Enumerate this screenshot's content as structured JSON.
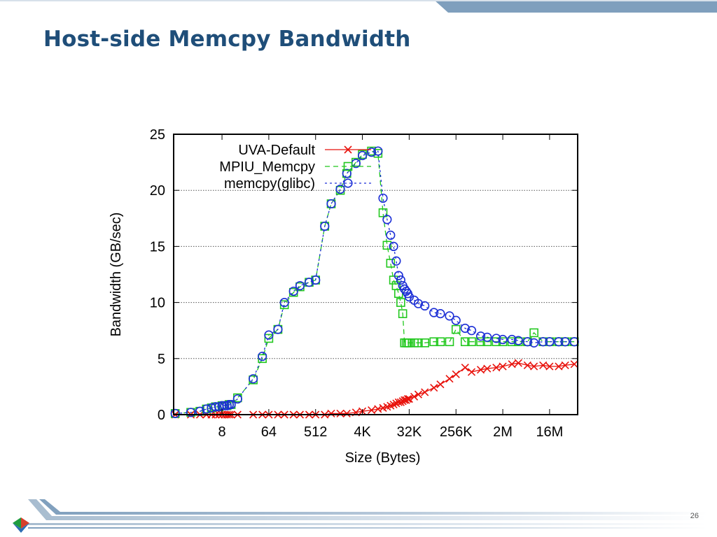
{
  "slide": {
    "title": "Host-side Memcpy Bandwidth",
    "page_number": "26",
    "colors": {
      "title": "#1f4e79",
      "band": "#7f9fbd",
      "footer_stripe": "#8aa8c4"
    }
  },
  "chart_data": {
    "type": "line",
    "title": "",
    "xlabel": "Size (Bytes)",
    "ylabel": "Bandwidth (GB/sec)",
    "x_scale": "log2",
    "x_tick_exponents": [
      3,
      6,
      9,
      12,
      15,
      18,
      21,
      24
    ],
    "x_tick_labels": [
      "8",
      "64",
      "512",
      "4K",
      "32K",
      "256K",
      "2M",
      "16M"
    ],
    "ylim": [
      0,
      25
    ],
    "y_ticks": [
      0,
      5,
      10,
      15,
      20,
      25
    ],
    "grid": "horizontal dotted",
    "legend_position": "top-right",
    "x": [
      1,
      2,
      3,
      4,
      5,
      6,
      7,
      8,
      9,
      10,
      11,
      12,
      16,
      32,
      48,
      64,
      96,
      128,
      192,
      256,
      384,
      512,
      768,
      1024,
      1536,
      2048,
      3072,
      4096,
      6144,
      8192,
      10240,
      12288,
      14336,
      16384,
      18432,
      20480,
      22528,
      24576,
      26624,
      28672,
      30720,
      32768,
      40960,
      49152,
      65536,
      98304,
      131072,
      196608,
      262144,
      393216,
      524288,
      786432,
      1048576,
      1572864,
      2097152,
      3145728,
      4194304,
      6291456,
      8388608,
      12582912,
      16777216,
      25165824,
      33554432,
      50331648
    ],
    "series": [
      {
        "name": "UVA-Default",
        "color": "#e8120c",
        "marker": "x",
        "dash": "solid",
        "values": [
          0.0,
          0.0,
          0.0,
          0.0,
          0.0,
          0.0,
          0.0,
          0.0,
          0.0,
          0.0,
          0.0,
          0.0,
          0.0,
          0.0,
          0.0,
          0.0,
          0.0,
          0.0,
          0.0,
          0.0,
          0.0,
          0.0,
          0.0,
          0.1,
          0.1,
          0.1,
          0.2,
          0.3,
          0.4,
          0.5,
          0.6,
          0.7,
          0.8,
          0.9,
          1.0,
          1.1,
          1.1,
          1.2,
          1.3,
          1.3,
          1.4,
          1.4,
          1.6,
          1.8,
          2.0,
          2.4,
          2.7,
          3.2,
          3.6,
          4.2,
          3.8,
          4.0,
          4.1,
          4.2,
          4.3,
          4.5,
          4.6,
          4.4,
          4.3,
          4.4,
          4.3,
          4.3,
          4.4,
          4.5
        ]
      },
      {
        "name": "MPIU_Memcpy",
        "color": "#22c81e",
        "marker": "square",
        "dash": "dashed",
        "values": [
          0.1,
          0.2,
          0.3,
          0.5,
          0.6,
          0.7,
          0.7,
          0.8,
          0.8,
          0.8,
          0.9,
          0.9,
          1.5,
          3.1,
          5.0,
          6.8,
          7.6,
          9.8,
          10.9,
          11.4,
          11.8,
          12.0,
          16.8,
          18.8,
          20.0,
          21.5,
          22.5,
          23.2,
          23.5,
          23.3,
          18.0,
          15.1,
          13.5,
          12.0,
          11.5,
          10.8,
          10.0,
          9.0,
          6.4,
          6.4,
          6.4,
          6.4,
          6.4,
          6.4,
          6.4,
          6.5,
          6.5,
          6.5,
          7.6,
          6.5,
          6.5,
          6.5,
          6.5,
          6.5,
          6.5,
          6.5,
          6.5,
          6.5,
          7.3,
          6.5,
          6.5,
          6.5,
          6.5,
          6.5
        ]
      },
      {
        "name": "memcpy(glibc)",
        "color": "#1c2fd6",
        "marker": "circle",
        "dash": "dotted",
        "values": [
          0.1,
          0.2,
          0.3,
          0.5,
          0.6,
          0.7,
          0.7,
          0.8,
          0.8,
          0.8,
          0.9,
          0.9,
          1.4,
          3.2,
          5.2,
          7.1,
          7.6,
          10.0,
          11.0,
          11.5,
          11.8,
          12.0,
          16.8,
          18.8,
          20.1,
          21.5,
          22.4,
          23.1,
          23.4,
          23.5,
          19.3,
          17.4,
          16.0,
          15.0,
          13.7,
          12.4,
          12.0,
          11.5,
          11.2,
          11.0,
          10.8,
          10.5,
          10.2,
          9.9,
          9.7,
          9.1,
          9.0,
          8.8,
          8.4,
          7.7,
          7.5,
          7.0,
          6.9,
          6.8,
          6.7,
          6.7,
          6.6,
          6.5,
          6.4,
          6.5,
          6.5,
          6.5,
          6.5,
          6.5
        ]
      }
    ]
  }
}
